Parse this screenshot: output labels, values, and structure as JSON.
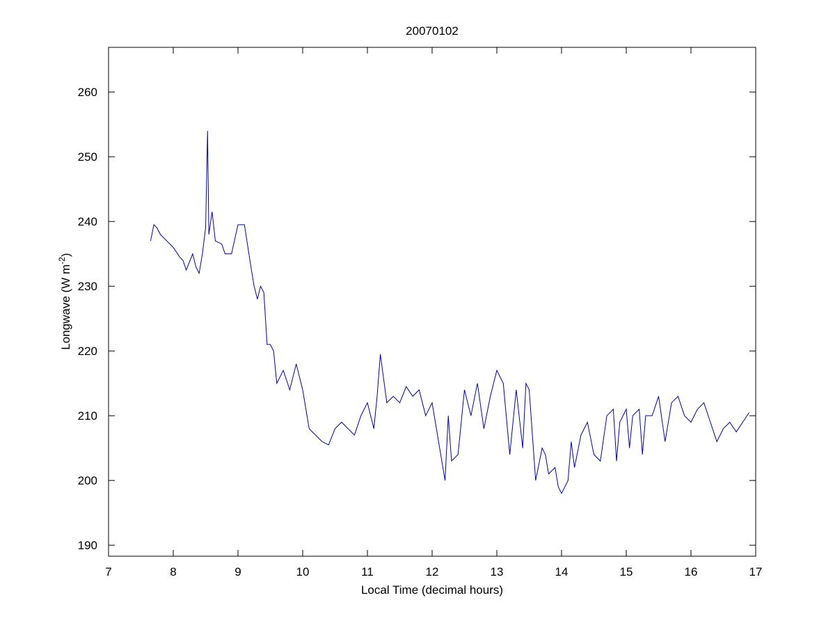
{
  "chart_data": {
    "type": "line",
    "title": "20070102",
    "x_label": "Local Time (decimal hours)",
    "y_label": {
      "text": "Longwave (W m",
      "superscript": "-2",
      "suffix": ")"
    },
    "x": [
      7.65,
      7.7,
      7.75,
      7.8,
      7.9,
      8.0,
      8.1,
      8.15,
      8.2,
      8.3,
      8.35,
      8.4,
      8.45,
      8.5,
      8.53,
      8.55,
      8.6,
      8.65,
      8.75,
      8.8,
      8.9,
      9.0,
      9.1,
      9.2,
      9.25,
      9.3,
      9.35,
      9.4,
      9.45,
      9.5,
      9.55,
      9.6,
      9.7,
      9.8,
      9.9,
      9.95,
      10.0,
      10.05,
      10.1,
      10.2,
      10.3,
      10.4,
      10.5,
      10.6,
      10.7,
      10.8,
      10.9,
      11.0,
      11.1,
      11.15,
      11.2,
      11.3,
      11.4,
      11.5,
      11.6,
      11.7,
      11.8,
      11.9,
      12.0,
      12.1,
      12.15,
      12.2,
      12.25,
      12.3,
      12.4,
      12.5,
      12.6,
      12.7,
      12.8,
      12.9,
      13.0,
      13.1,
      13.2,
      13.3,
      13.4,
      13.45,
      13.5,
      13.6,
      13.7,
      13.75,
      13.8,
      13.9,
      13.95,
      14.0,
      14.1,
      14.15,
      14.2,
      14.3,
      14.4,
      14.5,
      14.6,
      14.7,
      14.8,
      14.85,
      14.9,
      15.0,
      15.05,
      15.1,
      15.2,
      15.25,
      15.3,
      15.4,
      15.5,
      15.6,
      15.7,
      15.8,
      15.9,
      16.0,
      16.1,
      16.2,
      16.3,
      16.4,
      16.5,
      16.6,
      16.7,
      16.8,
      16.9
    ],
    "series": [
      {
        "color": "#0000aa",
        "values": [
          237,
          239.5,
          239,
          238,
          237,
          236,
          234.5,
          234,
          232.5,
          235,
          233,
          232,
          235,
          239,
          254,
          238,
          241.5,
          237,
          236.5,
          235,
          235,
          239.5,
          239.5,
          233,
          230,
          228,
          230,
          229,
          221,
          221,
          220,
          215,
          217,
          214,
          218,
          216,
          214,
          211,
          208,
          207,
          206,
          205.5,
          208,
          209,
          208,
          207,
          210,
          212,
          208,
          213,
          219.5,
          212,
          213,
          212,
          214.5,
          213,
          214,
          210,
          212,
          206,
          203,
          200,
          210,
          203,
          204,
          214,
          210,
          215,
          208,
          213,
          217,
          215,
          204,
          214,
          205,
          215,
          214,
          200,
          205,
          204,
          201,
          202,
          199,
          198,
          200,
          206,
          202,
          207,
          209,
          204,
          203,
          210,
          211,
          203,
          209,
          211,
          205,
          210,
          211,
          204,
          210,
          210,
          213,
          206,
          212,
          213,
          210,
          209,
          211,
          212,
          209,
          206,
          208,
          209,
          207.5,
          209,
          210.5
        ]
      }
    ],
    "xlim": [
      7,
      17
    ],
    "ylim": [
      188.3,
      266.9
    ],
    "xticks": [
      7,
      8,
      9,
      10,
      11,
      12,
      13,
      14,
      15,
      16,
      17
    ],
    "yticks": [
      190,
      200,
      210,
      220,
      230,
      240,
      250,
      260
    ]
  }
}
